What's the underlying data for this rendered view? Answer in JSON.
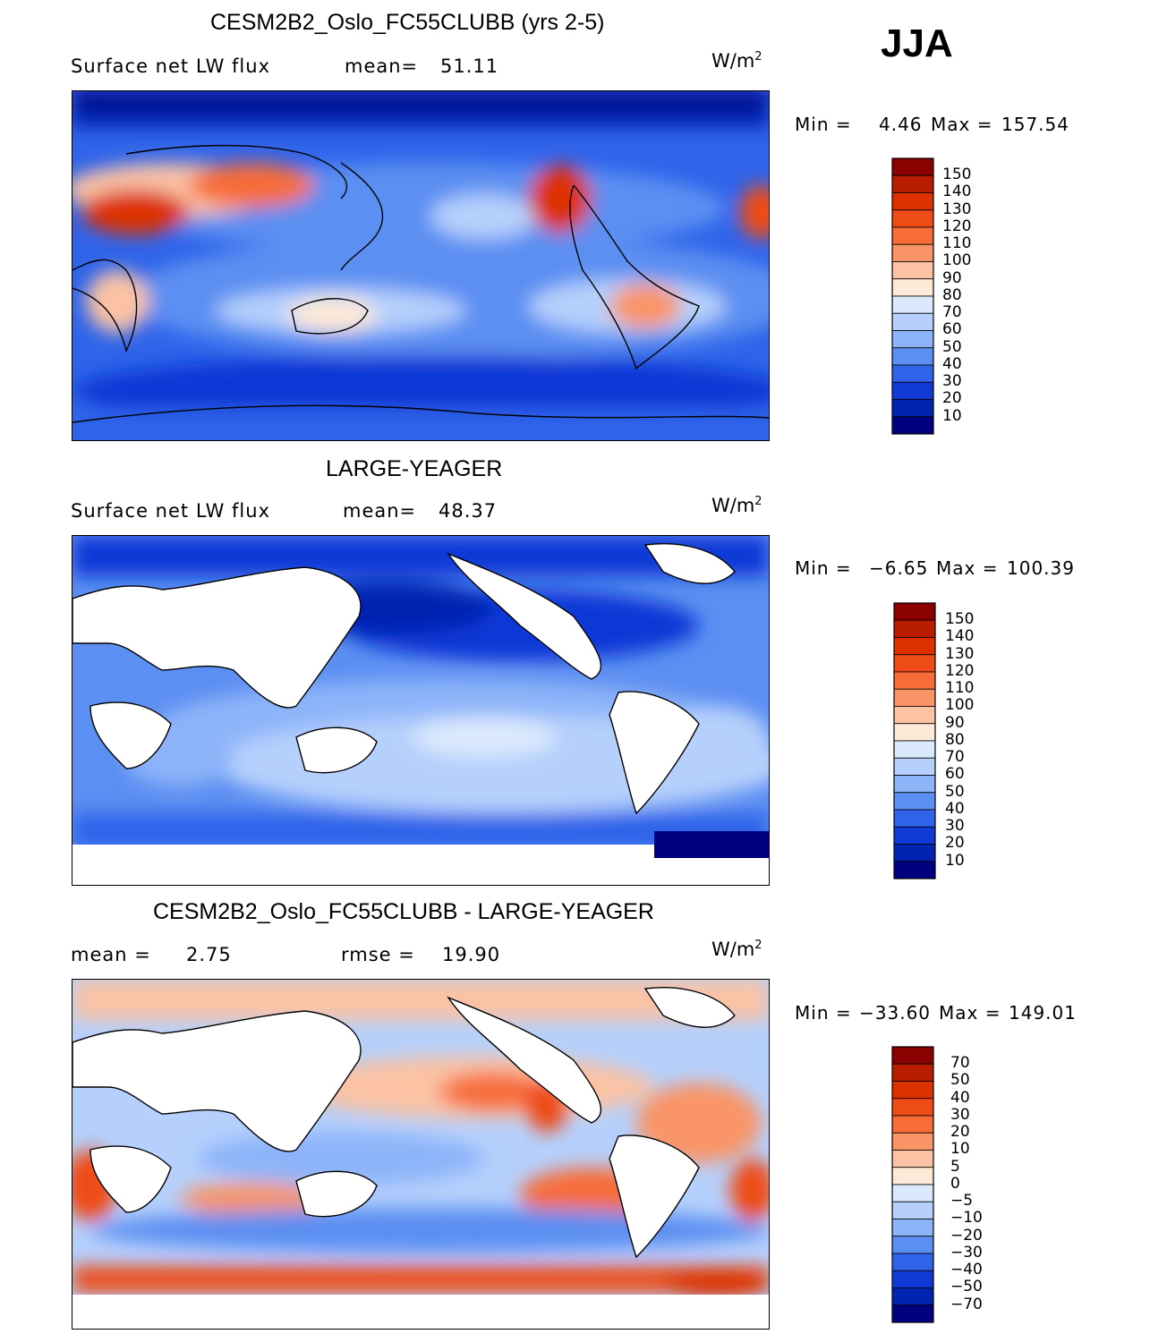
{
  "season": "JJA",
  "chart_data": [
    {
      "type": "heatmap",
      "title": "CESM2B2_Oslo_FC55CLUBB (yrs 2-5)",
      "variable": "Surface net LW flux",
      "mean_label": "mean=",
      "mean": "51.11",
      "units_base": "W/m",
      "units_exp": "2",
      "min_label": "Min =",
      "min": "4.46",
      "max_label": "Max =",
      "max": "157.54",
      "colorbar_levels": [
        "150",
        "140",
        "130",
        "120",
        "110",
        "100",
        "90",
        "80",
        "70",
        "60",
        "50",
        "40",
        "30",
        "20",
        "10"
      ],
      "colorbar_colors": [
        "#8b0000",
        "#b81d00",
        "#dd3200",
        "#ee4c16",
        "#f76d3a",
        "#f99466",
        "#fbc2a4",
        "#fde9d8",
        "#dbe9fd",
        "#b5d0fc",
        "#8db4f9",
        "#5c8ff2",
        "#2f64ea",
        "#1139d6",
        "#0024b1",
        "#000080"
      ]
    },
    {
      "type": "heatmap",
      "title": "LARGE-YEAGER",
      "variable": "Surface net LW flux",
      "mean_label": "mean=",
      "mean": "48.37",
      "units_base": "W/m",
      "units_exp": "2",
      "min_label": "Min =",
      "min": "−6.65",
      "max_label": "Max =",
      "max": "100.39",
      "colorbar_levels": [
        "150",
        "140",
        "130",
        "120",
        "110",
        "100",
        "90",
        "80",
        "70",
        "60",
        "50",
        "40",
        "30",
        "20",
        "10"
      ],
      "colorbar_colors": [
        "#8b0000",
        "#b81d00",
        "#dd3200",
        "#ee4c16",
        "#f76d3a",
        "#f99466",
        "#fbc2a4",
        "#fde9d8",
        "#dbe9fd",
        "#b5d0fc",
        "#8db4f9",
        "#5c8ff2",
        "#2f64ea",
        "#1139d6",
        "#0024b1",
        "#000080"
      ]
    },
    {
      "type": "heatmap",
      "title": "CESM2B2_Oslo_FC55CLUBB - LARGE-YEAGER",
      "mean_label": "mean =",
      "mean": "2.75",
      "rmse_label": "rmse =",
      "rmse": "19.90",
      "units_base": "W/m",
      "units_exp": "2",
      "min_label": "Min =",
      "min": "−33.60",
      "max_label": "Max =",
      "max": "149.01",
      "colorbar_levels": [
        "70",
        "50",
        "40",
        "30",
        "20",
        "10",
        "5",
        "0",
        "−5",
        "−10",
        "−20",
        "−30",
        "−40",
        "−50",
        "−70"
      ],
      "colorbar_colors": [
        "#8b0000",
        "#b81d00",
        "#dd3200",
        "#ee4c16",
        "#f76d3a",
        "#f99466",
        "#fbc2a4",
        "#fde9d8",
        "#dbe9fd",
        "#b5d0fc",
        "#8db4f9",
        "#5c8ff2",
        "#2f64ea",
        "#1139d6",
        "#0024b1",
        "#000080"
      ]
    }
  ]
}
